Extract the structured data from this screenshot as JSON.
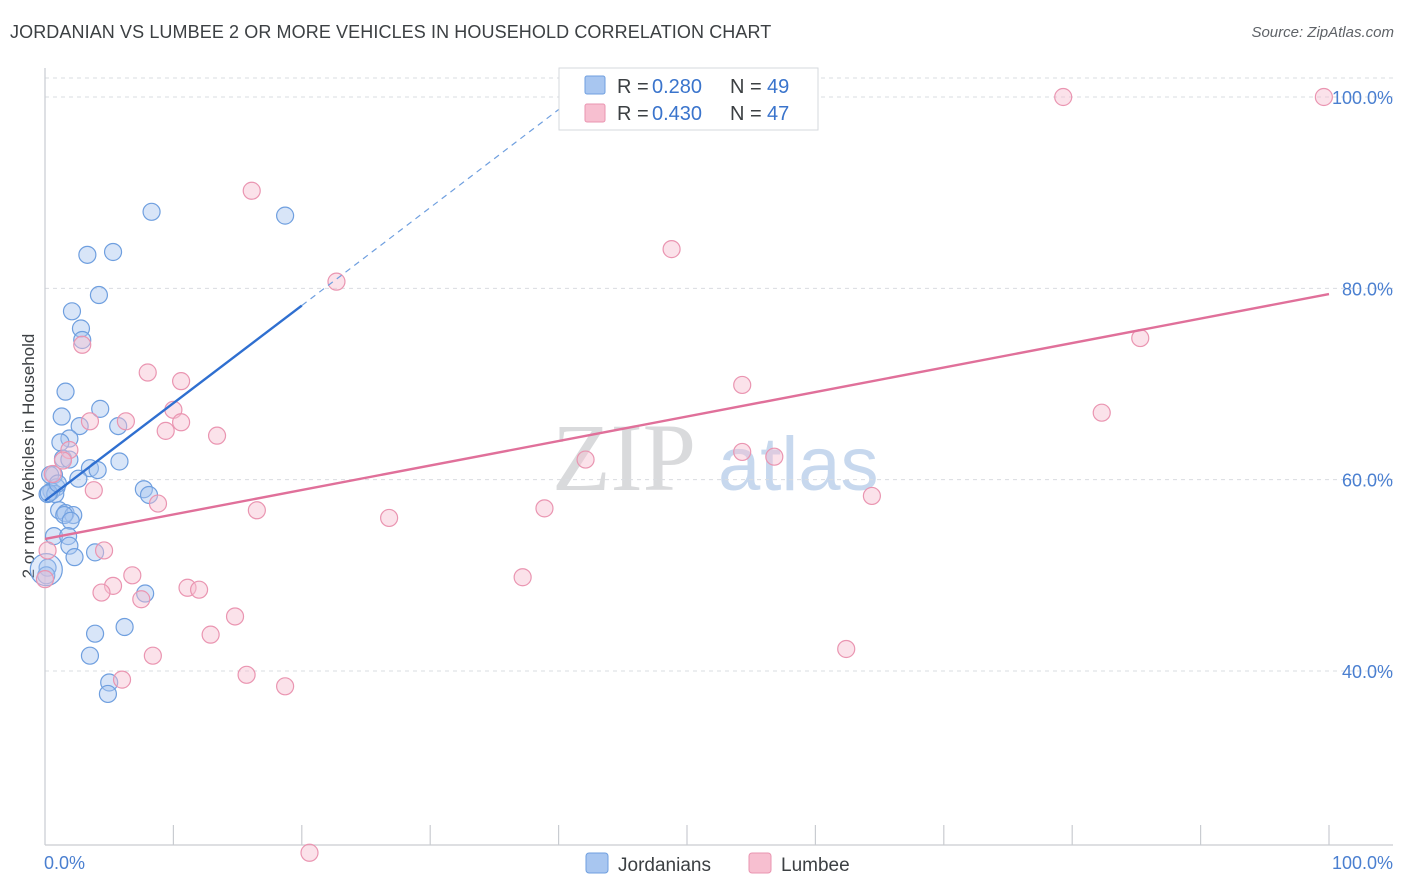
{
  "header": {
    "title": "JORDANIAN VS LUMBEE 2 OR MORE VEHICLES IN HOUSEHOLD CORRELATION CHART",
    "source": "Source: ZipAtlas.com"
  },
  "watermark": {
    "zip": "ZIP",
    "atlas": "atlas"
  },
  "colors": {
    "jordanians_fill": "#a8c6f0",
    "jordanians_stroke": "#6f9fdf",
    "jordanians_line": "#2f6fd0",
    "lumbee_fill": "#f7bfd0",
    "lumbee_stroke": "#ea95b1",
    "lumbee_line": "#e0709a",
    "grid": "#d9dce1",
    "tick_text": "#4a7fd0"
  },
  "legend": {
    "rows": [
      {
        "r_label": "R =",
        "r_value": "0.280",
        "n_label": "N =",
        "n_value": "49"
      },
      {
        "r_label": "R =",
        "r_value": "0.430",
        "n_label": "N =",
        "n_value": "47"
      }
    ]
  },
  "bottom_legend": {
    "items": [
      "Jordanians",
      "Lumbee"
    ]
  },
  "chart_data": {
    "type": "scatter",
    "title": "JORDANIAN VS LUMBEE 2 OR MORE VEHICLES IN HOUSEHOLD CORRELATION CHART",
    "xlabel": "",
    "ylabel": "2 or more Vehicles in Household",
    "xlim": [
      0,
      105
    ],
    "ylim": [
      20,
      102
    ],
    "x_tick_labels": [
      "0.0%",
      "100.0%"
    ],
    "y_tick_labels": [
      "40.0%",
      "60.0%",
      "80.0%",
      "100.0%"
    ],
    "y_ticks": [
      40,
      60,
      80,
      100
    ],
    "grid": true,
    "series": [
      {
        "name": "Jordanians",
        "r": 0.28,
        "n": 49,
        "trend": {
          "x0": 0,
          "y0": 57.8,
          "x1": 20,
          "y1": 78.2,
          "dash_to_x": 40.5,
          "dash_to_y": 99.2
        },
        "points": [
          [
            8.3,
            88.0
          ],
          [
            18.7,
            87.6
          ],
          [
            3.3,
            83.5
          ],
          [
            5.3,
            83.8
          ],
          [
            4.2,
            79.3
          ],
          [
            2.1,
            77.6
          ],
          [
            2.8,
            75.8
          ],
          [
            2.9,
            74.6
          ],
          [
            1.6,
            69.2
          ],
          [
            4.3,
            67.4
          ],
          [
            1.3,
            66.6
          ],
          [
            5.7,
            65.6
          ],
          [
            2.7,
            65.6
          ],
          [
            1.9,
            64.3
          ],
          [
            1.2,
            63.9
          ],
          [
            1.4,
            62.2
          ],
          [
            1.9,
            62.1
          ],
          [
            5.8,
            61.9
          ],
          [
            3.5,
            61.2
          ],
          [
            4.1,
            61.0
          ],
          [
            0.7,
            60.5
          ],
          [
            0.4,
            60.5
          ],
          [
            2.6,
            60.1
          ],
          [
            0.9,
            59.2
          ],
          [
            7.7,
            59.0
          ],
          [
            0.5,
            58.8
          ],
          [
            0.2,
            58.5
          ],
          [
            0.8,
            58.5
          ],
          [
            8.1,
            58.4
          ],
          [
            1.1,
            56.8
          ],
          [
            1.6,
            56.5
          ],
          [
            2.2,
            56.3
          ],
          [
            1.5,
            56.3
          ],
          [
            2.0,
            55.7
          ],
          [
            0.7,
            54.1
          ],
          [
            1.8,
            54.1
          ],
          [
            1.9,
            53.1
          ],
          [
            3.9,
            52.4
          ],
          [
            2.3,
            51.9
          ],
          [
            0.2,
            50.8
          ],
          [
            7.8,
            48.1
          ],
          [
            6.2,
            44.6
          ],
          [
            3.9,
            43.9
          ],
          [
            3.5,
            41.6
          ],
          [
            5.0,
            38.8
          ],
          [
            4.9,
            37.6
          ],
          [
            0.3,
            58.6
          ],
          [
            1.0,
            59.6
          ],
          [
            0.1,
            50.0
          ]
        ]
      },
      {
        "name": "Lumbee",
        "r": 0.43,
        "n": 47,
        "trend": {
          "x0": 0,
          "y0": 53.8,
          "x1": 100,
          "y1": 79.4
        },
        "points": [
          [
            79.3,
            100.0
          ],
          [
            99.6,
            100.0
          ],
          [
            16.1,
            90.2
          ],
          [
            48.8,
            84.1
          ],
          [
            22.7,
            80.7
          ],
          [
            2.9,
            74.1
          ],
          [
            8.0,
            71.2
          ],
          [
            10.6,
            70.3
          ],
          [
            54.3,
            69.9
          ],
          [
            85.3,
            74.8
          ],
          [
            82.3,
            67.0
          ],
          [
            10.0,
            67.3
          ],
          [
            3.5,
            66.1
          ],
          [
            6.3,
            66.1
          ],
          [
            10.6,
            66.0
          ],
          [
            9.4,
            65.1
          ],
          [
            13.4,
            64.6
          ],
          [
            1.9,
            63.1
          ],
          [
            54.3,
            62.9
          ],
          [
            56.8,
            62.4
          ],
          [
            42.1,
            62.1
          ],
          [
            1.4,
            62.0
          ],
          [
            0.6,
            60.6
          ],
          [
            3.8,
            58.9
          ],
          [
            8.8,
            57.5
          ],
          [
            64.4,
            58.3
          ],
          [
            16.5,
            56.8
          ],
          [
            38.9,
            57.0
          ],
          [
            26.8,
            56.0
          ],
          [
            0.2,
            52.6
          ],
          [
            4.6,
            52.6
          ],
          [
            6.8,
            50.0
          ],
          [
            37.2,
            49.8
          ],
          [
            5.3,
            48.9
          ],
          [
            11.1,
            48.7
          ],
          [
            12.0,
            48.5
          ],
          [
            4.4,
            48.2
          ],
          [
            7.5,
            47.5
          ],
          [
            14.8,
            45.7
          ],
          [
            12.9,
            43.8
          ],
          [
            8.4,
            41.6
          ],
          [
            62.4,
            42.3
          ],
          [
            15.7,
            39.6
          ],
          [
            6.0,
            39.1
          ],
          [
            18.7,
            38.4
          ],
          [
            20.6,
            21.0
          ],
          [
            0.0,
            49.6
          ]
        ]
      }
    ]
  }
}
